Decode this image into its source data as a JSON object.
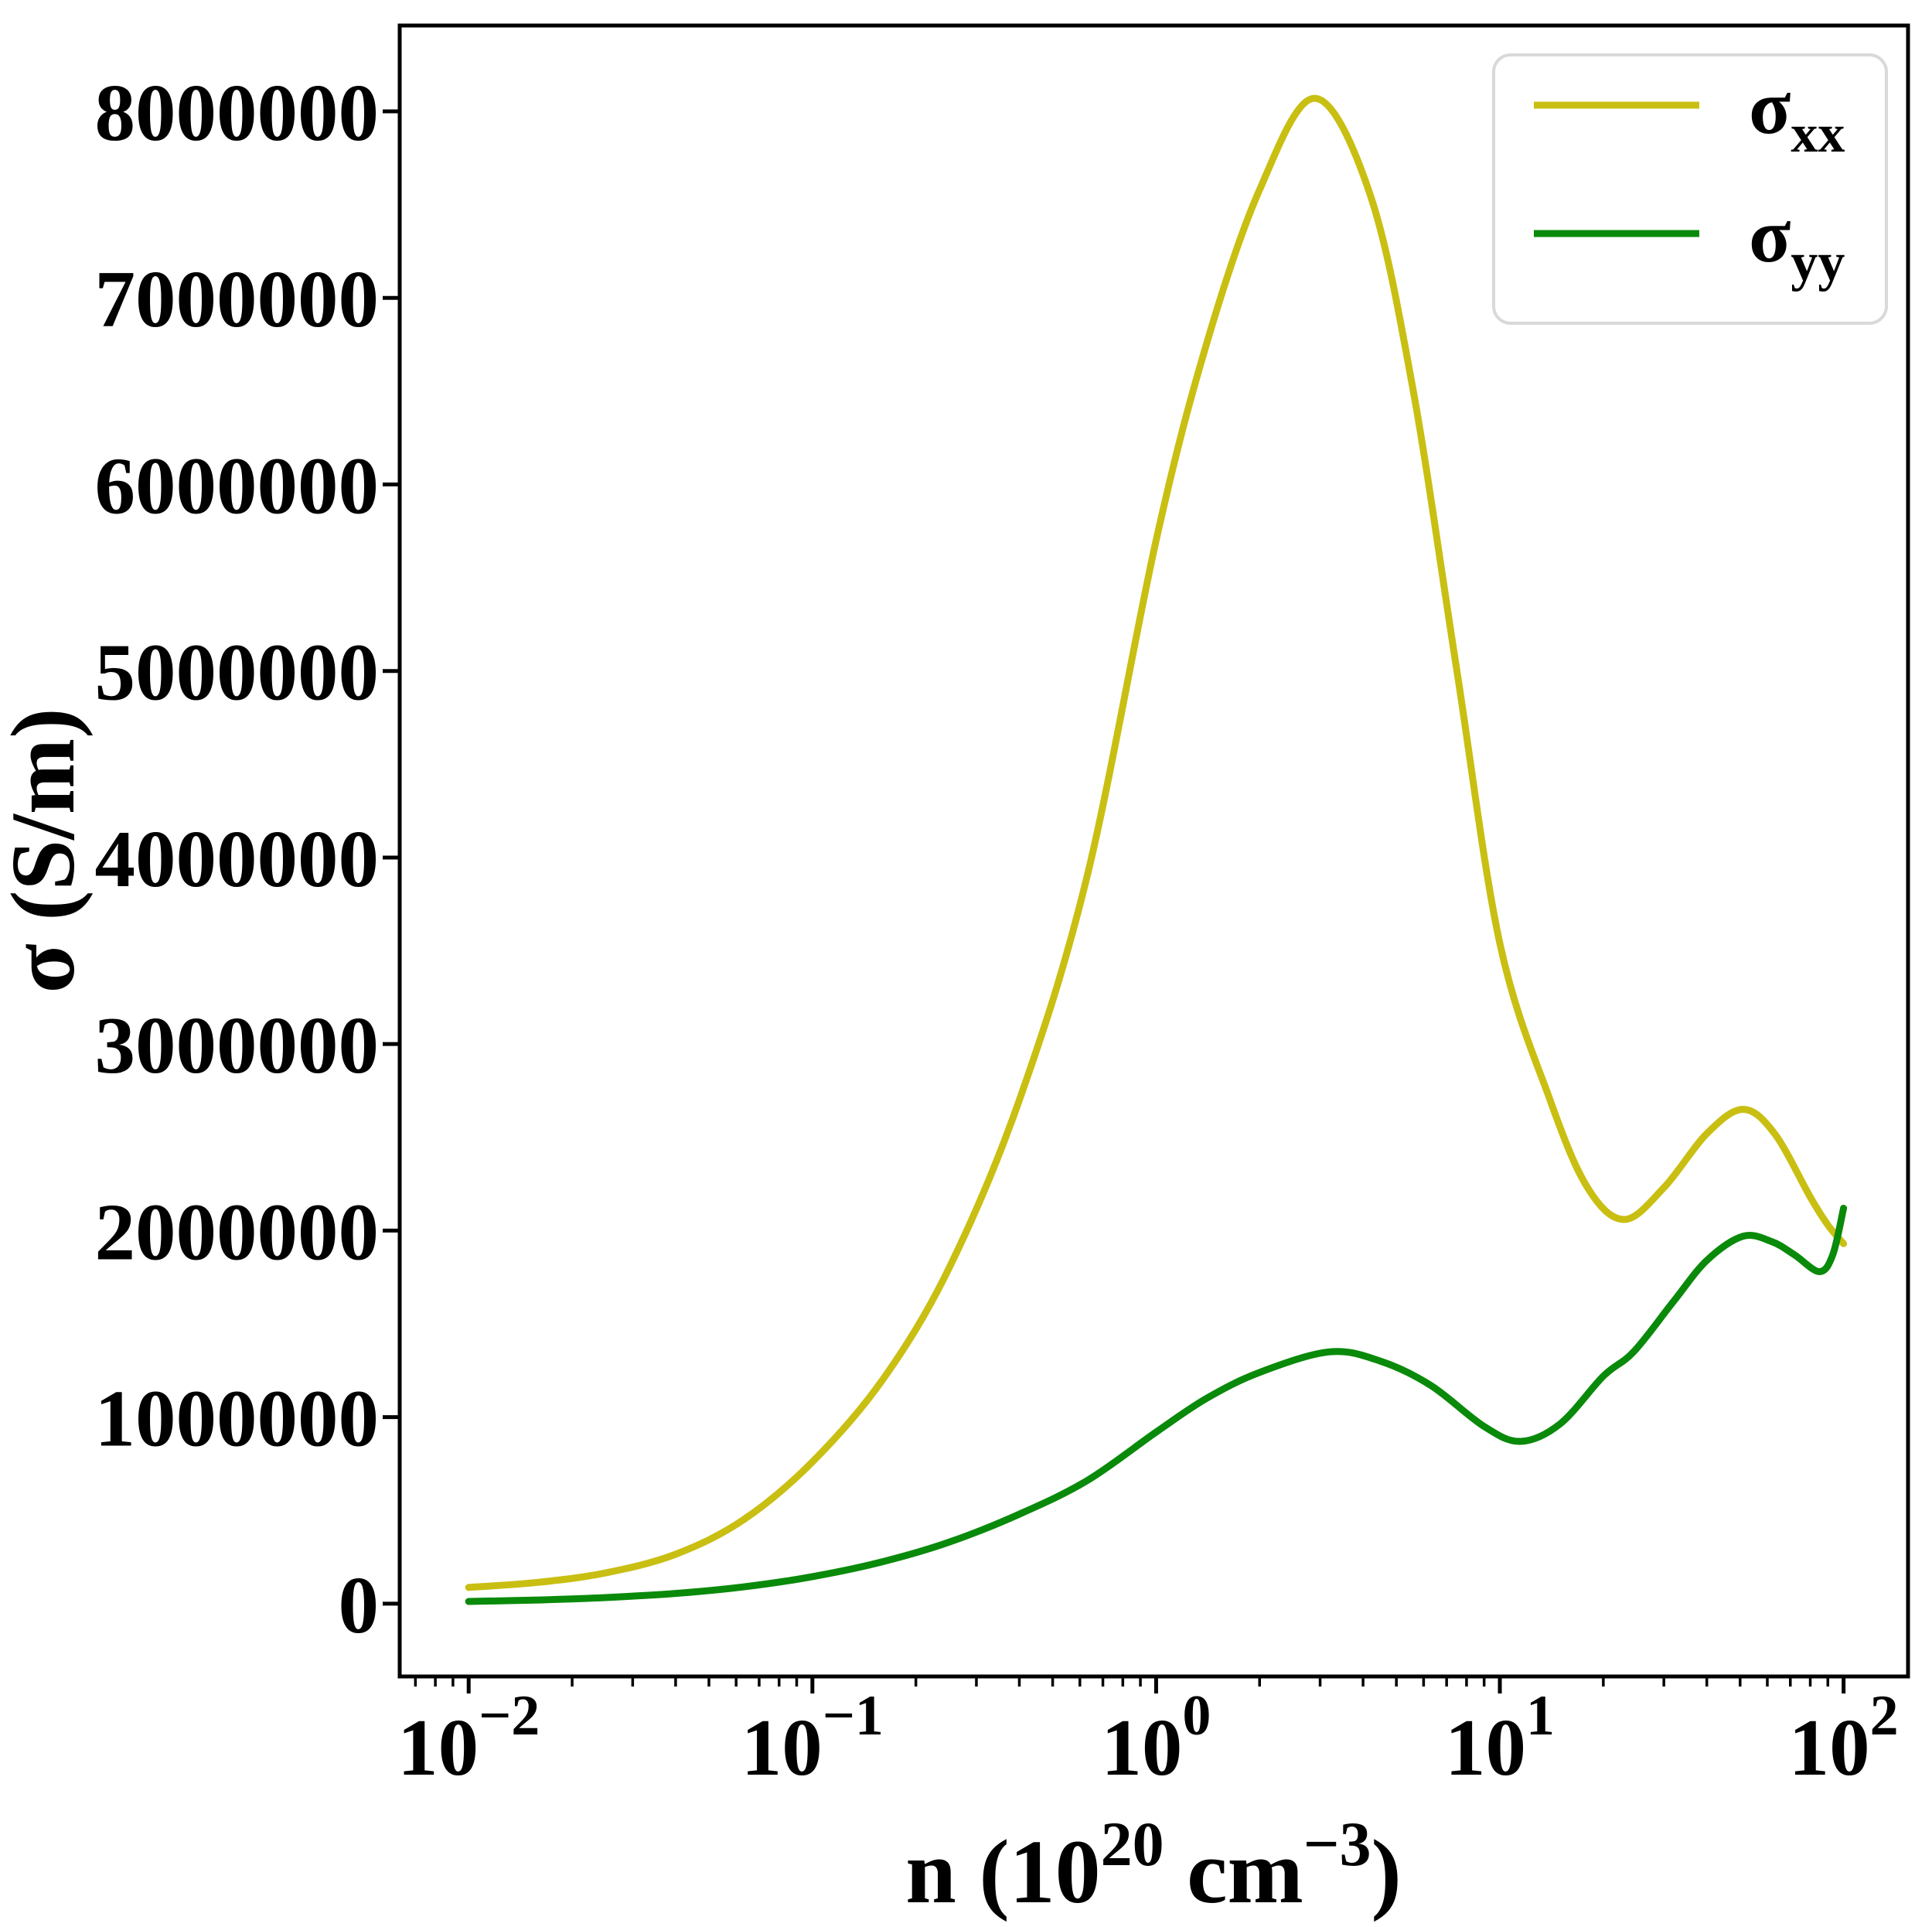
{
  "figure": {
    "background": "#ffffff",
    "axis_color": "#000000",
    "legend_border_color": "#d9d9d9"
  },
  "chart_data": {
    "type": "line",
    "xscale": "log",
    "title": "",
    "xlabel_plain": "n (10^20 cm^-3)",
    "ylabel": "σ (S/m)",
    "xlabel_parts": [
      {
        "t": "n (10",
        "sup": false
      },
      {
        "t": "20",
        "sup": true
      },
      {
        "t": " cm",
        "sup": false
      },
      {
        "t": "−3",
        "sup": true
      },
      {
        "t": ")",
        "sup": false
      }
    ],
    "xlim": [
      0.0063,
      154
    ],
    "ylim": [
      -390000,
      8460000
    ],
    "grid": false,
    "legend": {
      "position": "upper right",
      "entries": [
        "σ_xx",
        "σ_yy"
      ]
    },
    "x_ticks": [
      {
        "value": 0.01,
        "base": "10",
        "exp": "−2"
      },
      {
        "value": 0.1,
        "base": "10",
        "exp": "−1"
      },
      {
        "value": 1,
        "base": "10",
        "exp": "0"
      },
      {
        "value": 10,
        "base": "10",
        "exp": "1"
      },
      {
        "value": 100,
        "base": "10",
        "exp": "2"
      }
    ],
    "y_ticks": [
      {
        "value": 0,
        "label": "0"
      },
      {
        "value": 1000000,
        "label": "1000000"
      },
      {
        "value": 2000000,
        "label": "2000000"
      },
      {
        "value": 3000000,
        "label": "3000000"
      },
      {
        "value": 4000000,
        "label": "4000000"
      },
      {
        "value": 5000000,
        "label": "5000000"
      },
      {
        "value": 6000000,
        "label": "6000000"
      },
      {
        "value": 7000000,
        "label": "7000000"
      },
      {
        "value": 8000000,
        "label": "8000000"
      }
    ],
    "series": [
      {
        "name": "sigma_xx",
        "label_base": "σ",
        "label_sub": "xx",
        "color": "#c9bf12",
        "peak": {
          "n": 2.9,
          "sigma": 8070000
        },
        "points": [
          [
            0.01,
            87000
          ],
          [
            0.016,
            115000
          ],
          [
            0.025,
            165000
          ],
          [
            0.04,
            265000
          ],
          [
            0.063,
            450000
          ],
          [
            0.1,
            760000
          ],
          [
            0.16,
            1200000
          ],
          [
            0.25,
            1800000
          ],
          [
            0.4,
            2700000
          ],
          [
            0.63,
            3900000
          ],
          [
            1.0,
            5700000
          ],
          [
            1.4,
            6750000
          ],
          [
            2.0,
            7580000
          ],
          [
            2.9,
            8070000
          ],
          [
            4.2,
            7550000
          ],
          [
            5.6,
            6500000
          ],
          [
            7.5,
            5000000
          ],
          [
            10,
            3540000
          ],
          [
            14,
            2700000
          ],
          [
            18,
            2230000
          ],
          [
            23,
            2060000
          ],
          [
            30,
            2230000
          ],
          [
            40,
            2520000
          ],
          [
            51,
            2650000
          ],
          [
            63,
            2520000
          ],
          [
            80,
            2180000
          ],
          [
            90,
            2030000
          ],
          [
            100,
            1930000
          ]
        ]
      },
      {
        "name": "sigma_yy",
        "label_base": "σ",
        "label_sub": "yy",
        "color": "#0a8a0a",
        "peak": {
          "n": 100,
          "sigma": 2120000
        },
        "points": [
          [
            0.01,
            12000
          ],
          [
            0.016,
            20000
          ],
          [
            0.025,
            33000
          ],
          [
            0.04,
            55000
          ],
          [
            0.063,
            90000
          ],
          [
            0.1,
            145000
          ],
          [
            0.16,
            225000
          ],
          [
            0.25,
            330000
          ],
          [
            0.4,
            480000
          ],
          [
            0.63,
            660000
          ],
          [
            1.0,
            920000
          ],
          [
            1.4,
            1100000
          ],
          [
            2.0,
            1240000
          ],
          [
            3.2,
            1350000
          ],
          [
            4.5,
            1300000
          ],
          [
            6.3,
            1170000
          ],
          [
            9.0,
            950000
          ],
          [
            11.5,
            870000
          ],
          [
            15,
            965000
          ],
          [
            20,
            1220000
          ],
          [
            24.5,
            1350000
          ],
          [
            32,
            1620000
          ],
          [
            40,
            1840000
          ],
          [
            51,
            1970000
          ],
          [
            62,
            1940000
          ],
          [
            72,
            1870000
          ],
          [
            85,
            1780000
          ],
          [
            93,
            1870000
          ],
          [
            100,
            2120000
          ]
        ]
      }
    ]
  }
}
